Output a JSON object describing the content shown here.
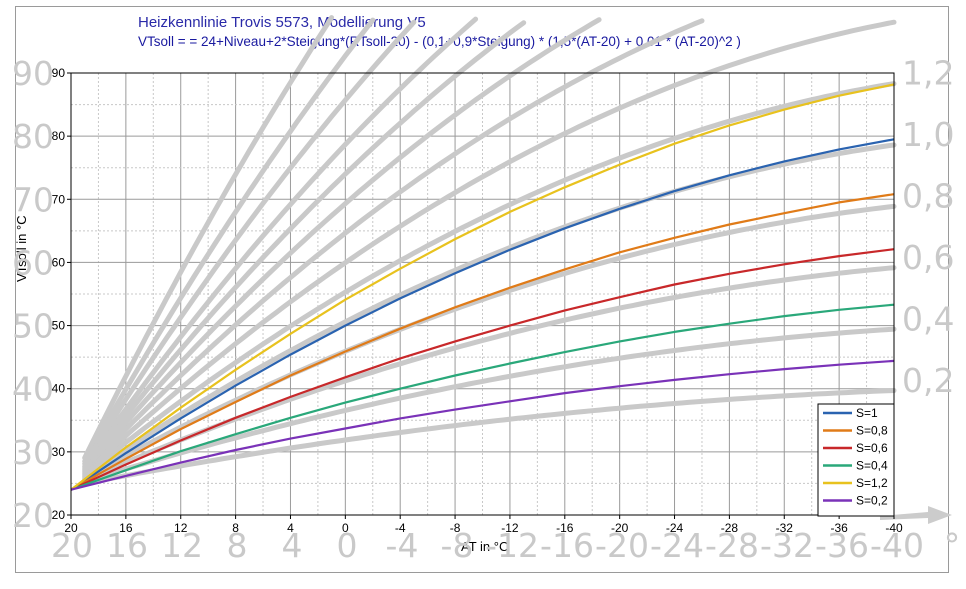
{
  "chart_data": {
    "type": "line",
    "title": "Heizkennlinie Trovis 5573, Modellierung V5",
    "subtitle": "VTsoll =  = 24+Niveau+2*Steigung*(RTsoll-20) - (0,1+0,9*Steigung) * (1,5*(AT-20) + 0,01 * (AT-20)^2 )",
    "xlabel": "AT in °C",
    "ylabel": "VTsoll in °C",
    "x": [
      20,
      16,
      12,
      8,
      4,
      0,
      -4,
      -8,
      -12,
      -16,
      -20,
      -24,
      -28,
      -32,
      -36,
      -40
    ],
    "xticks": [
      "20",
      "16",
      "12",
      "8",
      "4",
      "0",
      "-4",
      "-8",
      "-12",
      "-16",
      "-20",
      "-24",
      "-28",
      "-32",
      "-36",
      "-40"
    ],
    "yticks": [
      "20",
      "30",
      "40",
      "50",
      "60",
      "70",
      "80",
      "90"
    ],
    "xlim": [
      20,
      -40
    ],
    "ylim": [
      20,
      90
    ],
    "grid": true,
    "legend_position": "bottom-right",
    "series": [
      {
        "name": "S=1",
        "color": "#2a63b0",
        "steigung": 1.0,
        "values": [
          24,
          29.8,
          35.3,
          40.5,
          45.4,
          50,
          54.3,
          58.3,
          62,
          65.4,
          68.5,
          71.3,
          73.8,
          76,
          77.9,
          79.5
        ]
      },
      {
        "name": "S=0,8",
        "color": "#e07b18",
        "steigung": 0.8,
        "values": [
          24,
          28.9,
          33.6,
          37.9,
          42.1,
          45.9,
          49.5,
          52.9,
          56,
          58.9,
          61.6,
          63.9,
          66,
          67.8,
          69.5,
          70.8
        ]
      },
      {
        "name": "S=0,6",
        "color": "#c8282a",
        "steigung": 0.6,
        "values": [
          24,
          28,
          31.8,
          35.4,
          38.7,
          41.8,
          44.8,
          47.5,
          50,
          52.4,
          54.5,
          56.5,
          58.2,
          59.7,
          61,
          62.1
        ]
      },
      {
        "name": "S=0,4",
        "color": "#2aa87a",
        "steigung": 0.4,
        "values": [
          24,
          27.1,
          30.1,
          32.8,
          35.4,
          37.8,
          40,
          42.1,
          44,
          45.8,
          47.5,
          49,
          50.3,
          51.5,
          52.5,
          53.3
        ]
      },
      {
        "name": "S=1,2",
        "color": "#e8c21e",
        "steigung": 1.2,
        "values": [
          24,
          30.7,
          37,
          43,
          48.7,
          54.1,
          59,
          63.7,
          68,
          71.9,
          75.5,
          78.8,
          81.7,
          84.2,
          86.4,
          88.2
        ]
      },
      {
        "name": "S=0,2",
        "color": "#7a32b8",
        "steigung": 0.2,
        "values": [
          24,
          26.2,
          28.3,
          30.3,
          32.1,
          33.7,
          35.3,
          36.7,
          38,
          39.3,
          40.4,
          41.4,
          42.3,
          43.1,
          43.8,
          44.4
        ]
      }
    ],
    "background_scale": {
      "left_labels": [
        "20",
        "30",
        "40",
        "50",
        "60",
        "70",
        "80",
        "90"
      ],
      "bottom_labels": [
        "20",
        "16",
        "12",
        "8",
        "4",
        "0",
        "-4",
        "-8",
        "-12",
        "-16",
        "-20",
        "-24",
        "-28",
        "-32",
        "-36",
        "-40",
        "°"
      ],
      "right_labels": [
        "0,2",
        "0,4",
        "0,6",
        "0,8",
        "1,0",
        "1,2"
      ]
    }
  }
}
